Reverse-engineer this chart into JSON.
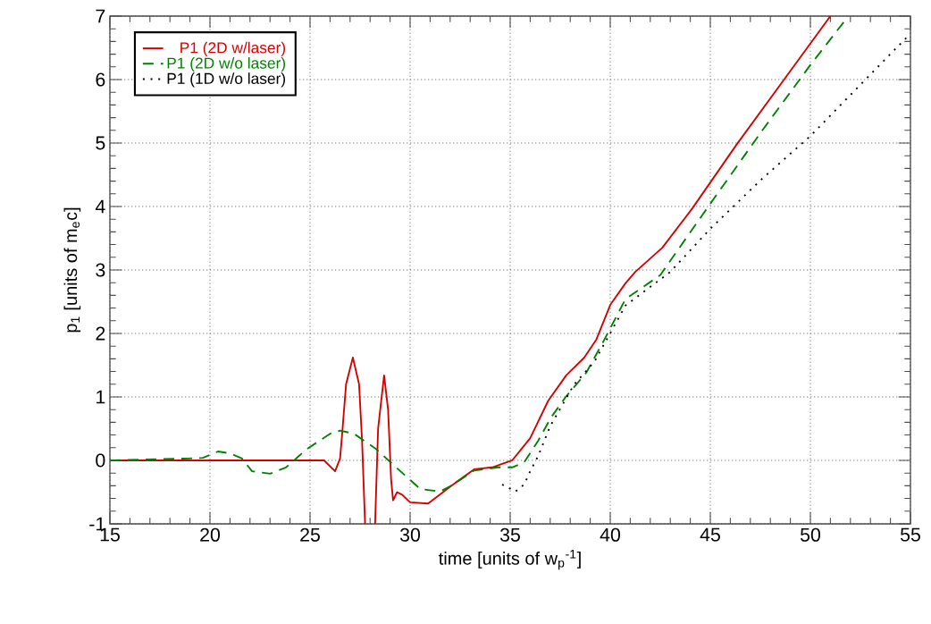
{
  "chart_data": {
    "type": "line",
    "xlabel": "time [units of w$_{p}$$^{-1}$]",
    "ylabel": "p$_{1}$ [units of m$_{e}$c]",
    "xlim": [
      15,
      55
    ],
    "ylim": [
      -1,
      7
    ],
    "xticks": [
      15,
      20,
      25,
      30,
      35,
      40,
      45,
      50,
      55
    ],
    "yticks": [
      -1,
      0,
      1,
      2,
      3,
      4,
      5,
      6,
      7
    ],
    "grid": true,
    "legend": "top left",
    "series": [
      {
        "name": "P1 (2D w/laser)",
        "color": "#d40000",
        "line_style": "solid",
        "x": [
          15,
          25.7,
          26.25,
          26.5,
          26.6,
          26.8,
          27.14,
          27.45,
          27.6,
          27.75,
          27.95,
          28.25,
          28.4,
          28.7,
          28.9,
          29.05,
          29.15,
          29.35,
          29.6,
          30.0,
          30.9,
          32.1,
          33.2,
          34.1,
          35.1,
          36.0,
          36.9,
          37.8,
          38.7,
          39.3,
          40.0,
          40.76,
          41.25,
          42.6,
          44.1,
          46.3,
          48.66,
          51.0
        ],
        "values": [
          0,
          0,
          -0.17,
          0.03,
          0.4,
          1.2,
          1.62,
          1.2,
          0.3,
          -1,
          null,
          -1,
          0.5,
          1.34,
          0.8,
          -0.3,
          -0.63,
          -0.5,
          -0.54,
          -0.66,
          -0.68,
          -0.39,
          -0.14,
          -0.11,
          0,
          0.35,
          0.94,
          1.34,
          1.62,
          1.9,
          2.45,
          2.79,
          2.97,
          3.35,
          3.97,
          4.97,
          5.99,
          7.0
        ]
      },
      {
        "name": "P1 (2D w/o laser)",
        "color": "#008000",
        "line_style": "dashed",
        "x": [
          15,
          18.9,
          19.65,
          20.4,
          21.0,
          21.6,
          22.1,
          23.0,
          23.8,
          24.2,
          24.8,
          26.0,
          26.5,
          27.2,
          28.3,
          29.3,
          30.5,
          31.5,
          32.1,
          33.2,
          34.4,
          35.1,
          35.7,
          36.4,
          37.05,
          37.8,
          38.8,
          39.7,
          40.76,
          42.5,
          44.9,
          47.6,
          50.0,
          51.9
        ],
        "values": [
          0,
          0.03,
          0.04,
          0.14,
          0.11,
          0.03,
          -0.17,
          -0.21,
          -0.11,
          0,
          0.17,
          0.42,
          0.47,
          0.42,
          0.18,
          -0.11,
          -0.45,
          -0.49,
          -0.39,
          -0.16,
          -0.11,
          -0.11,
          -0.03,
          0.31,
          0.68,
          1.01,
          1.38,
          1.9,
          2.54,
          2.92,
          4.0,
          5.2,
          6.23,
          7.0
        ]
      },
      {
        "name": "P1 (1D w/o laser)",
        "color": "#000000",
        "line_style": "dotted",
        "x": [
          34.6,
          35.27,
          35.7,
          36.0,
          36.4,
          37.0,
          38.2,
          39.2,
          40.76,
          43.0,
          45.0,
          47.6,
          50.0,
          52.1,
          54.8
        ],
        "values": [
          -0.38,
          -0.49,
          -0.38,
          -0.17,
          0.07,
          0.54,
          1.2,
          1.55,
          2.44,
          2.97,
          3.65,
          4.44,
          5.11,
          5.79,
          6.66
        ]
      }
    ]
  }
}
